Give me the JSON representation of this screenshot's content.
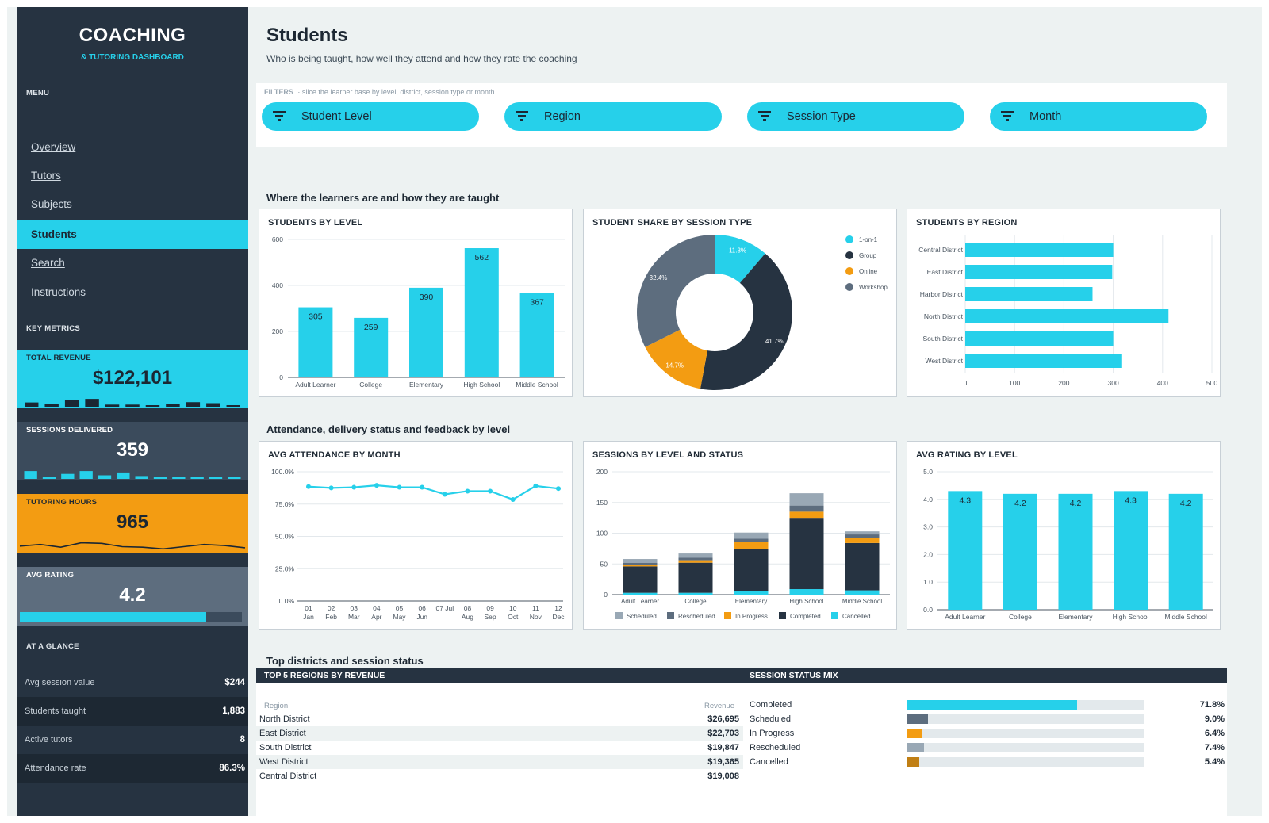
{
  "brand": {
    "title": "COACHING",
    "subtitle": "& TUTORING DASHBOARD"
  },
  "sidebar": {
    "menu_label": "MENU",
    "nav": [
      {
        "label": "Overview",
        "active": false
      },
      {
        "label": "Tutors",
        "active": false
      },
      {
        "label": "Subjects",
        "active": false
      },
      {
        "label": "Students",
        "active": true
      },
      {
        "label": "Search",
        "active": false
      },
      {
        "label": "Instructions",
        "active": false
      }
    ],
    "metrics_label": "KEY METRICS",
    "kpis": {
      "revenue": {
        "label": "TOTAL REVENUE",
        "value": "$122,101",
        "spark": [
          0.3,
          0.2,
          0.45,
          0.55,
          0.15,
          0.15,
          0.05,
          0.22,
          0.32,
          0.25,
          0.08
        ]
      },
      "sessions": {
        "label": "SESSIONS DELIVERED",
        "value": "359",
        "spark": [
          0.55,
          0.15,
          0.35,
          0.55,
          0.25,
          0.45,
          0.2,
          0.05,
          0.05,
          0.05,
          0.15,
          0.05
        ]
      },
      "hours": {
        "label": "TUTORING HOURS",
        "value": "965",
        "spark": [
          0.3,
          0.45,
          0.2,
          0.6,
          0.55,
          0.25,
          0.2,
          0.05,
          0.25,
          0.45,
          0.35,
          0.15
        ]
      },
      "rating": {
        "label": "AVG RATING",
        "value": "4.2",
        "progress": 0.84
      }
    },
    "glance_label": "AT A GLANCE",
    "glance": [
      {
        "label": "Avg session value",
        "value": "$244"
      },
      {
        "label": "Students taught",
        "value": "1,883"
      },
      {
        "label": "Active tutors",
        "value": "8"
      },
      {
        "label": "Attendance rate",
        "value": "86.3%"
      }
    ]
  },
  "header": {
    "title": "Students",
    "subtitle": "Who is being taught, how well they attend and how they rate the coaching"
  },
  "filters": {
    "caption_label": "FILTERS",
    "caption_text": "slice the learner base by level, district, session type or month",
    "items": [
      "Student Level",
      "Region",
      "Session Type",
      "Month"
    ]
  },
  "sections": {
    "s1": "Where the learners are and how they are taught",
    "s2": "Attendance, delivery status and feedback by level",
    "s3": "Top districts and session status"
  },
  "colors": {
    "accent": "#26d0ea",
    "navy": "#263341",
    "orange": "#f39c12",
    "slate": "#5d6d7e",
    "grey": "#99a8b5",
    "dark_orange": "#c07f14"
  },
  "chart_data": [
    {
      "id": "students_by_level",
      "type": "bar",
      "title": "STUDENTS BY LEVEL",
      "categories": [
        "Adult Learner",
        "College",
        "Elementary",
        "High School",
        "Middle School"
      ],
      "values": [
        305,
        259,
        390,
        562,
        367
      ],
      "yticks": [
        "0",
        "200",
        "400",
        "600"
      ],
      "ylim": [
        0,
        600
      ]
    },
    {
      "id": "share_by_session_type",
      "type": "pie",
      "title": "STUDENT SHARE BY SESSION TYPE",
      "labels": [
        "1-on-1",
        "Group",
        "Online",
        "Workshop"
      ],
      "values": [
        11.3,
        41.7,
        14.7,
        32.4
      ],
      "display": [
        "11.3%",
        "41.7%",
        "14.7%",
        "32.4%"
      ],
      "colors": [
        "#26d0ea",
        "#263341",
        "#f39c12",
        "#5d6d7e"
      ]
    },
    {
      "id": "students_by_region",
      "type": "bar",
      "orientation": "horizontal",
      "title": "STUDENTS BY REGION",
      "categories": [
        "Central District",
        "East District",
        "Harbor District",
        "North District",
        "South District",
        "West District"
      ],
      "values": [
        300,
        298,
        258,
        412,
        300,
        318
      ],
      "xticks": [
        "0",
        "100",
        "200",
        "300",
        "400",
        "500"
      ],
      "xlim": [
        0,
        500
      ]
    },
    {
      "id": "avg_attendance_by_month",
      "type": "line",
      "title": "AVG ATTENDANCE BY MONTH",
      "xticks": [
        [
          "01",
          "Jan"
        ],
        [
          "02",
          "Feb"
        ],
        [
          "03",
          "Mar"
        ],
        [
          "04",
          "Apr"
        ],
        [
          "05",
          "May"
        ],
        [
          "06",
          "Jun"
        ],
        [
          "07 Jul",
          ""
        ],
        [
          "08",
          "Aug"
        ],
        [
          "09",
          "Sep"
        ],
        [
          "10",
          "Oct"
        ],
        [
          "11",
          "Nov"
        ],
        [
          "12",
          "Dec"
        ]
      ],
      "values": [
        88.5,
        87.5,
        88,
        89.5,
        88,
        88,
        82.5,
        85,
        85,
        78.5,
        89,
        87
      ],
      "yticks": [
        "0.0%",
        "25.0%",
        "50.0%",
        "75.0%",
        "100.0%"
      ],
      "ylim": [
        0,
        100
      ]
    },
    {
      "id": "sessions_by_level_and_status",
      "type": "bar",
      "stacked": true,
      "title": "SESSIONS BY LEVEL AND STATUS",
      "categories": [
        "Adult Learner",
        "College",
        "Elementary",
        "High School",
        "Middle School"
      ],
      "series": [
        {
          "name": "Cancelled",
          "color": "#26d0ea",
          "values": [
            3,
            3,
            6,
            9,
            7
          ]
        },
        {
          "name": "Completed",
          "color": "#263341",
          "values": [
            43,
            49,
            68,
            116,
            77
          ]
        },
        {
          "name": "In Progress",
          "color": "#f39c12",
          "values": [
            3,
            4,
            12,
            10,
            8
          ]
        },
        {
          "name": "Rescheduled",
          "color": "#5d6d7e",
          "values": [
            3,
            4,
            5,
            10,
            6
          ]
        },
        {
          "name": "Scheduled",
          "color": "#99a8b5",
          "values": [
            6,
            7,
            10,
            20,
            5
          ]
        }
      ],
      "legend_order": [
        "Scheduled",
        "Rescheduled",
        "In Progress",
        "Completed",
        "Cancelled"
      ],
      "yticks": [
        "0",
        "50",
        "100",
        "150",
        "200"
      ],
      "ylim": [
        0,
        200
      ]
    },
    {
      "id": "avg_rating_by_level",
      "type": "bar",
      "title": "AVG RATING BY LEVEL",
      "categories": [
        "Adult Learner",
        "College",
        "Elementary",
        "High School",
        "Middle School"
      ],
      "values": [
        4.3,
        4.2,
        4.2,
        4.3,
        4.2
      ],
      "yticks": [
        "0.0",
        "1.0",
        "2.0",
        "3.0",
        "4.0",
        "5.0"
      ],
      "ylim": [
        0,
        5
      ]
    }
  ],
  "bottom": {
    "regions_title": "TOP 5 REGIONS BY REVENUE",
    "region_header": "Region",
    "revenue_header": "Revenue",
    "regions": [
      {
        "name": "North District",
        "value": "$26,695"
      },
      {
        "name": "East District",
        "value": "$22,703"
      },
      {
        "name": "South District",
        "value": "$19,847"
      },
      {
        "name": "West District",
        "value": "$19,365"
      },
      {
        "name": "Central District",
        "value": "$19,008"
      }
    ],
    "status_title": "SESSION STATUS MIX",
    "statuses": [
      {
        "name": "Completed",
        "pct": "71.8%",
        "share": 0.718,
        "color": "#26d0ea"
      },
      {
        "name": "Scheduled",
        "pct": "9.0%",
        "share": 0.09,
        "color": "#5d6d7e"
      },
      {
        "name": "In Progress",
        "pct": "6.4%",
        "share": 0.064,
        "color": "#f39c12"
      },
      {
        "name": "Rescheduled",
        "pct": "7.4%",
        "share": 0.074,
        "color": "#99a8b5"
      },
      {
        "name": "Cancelled",
        "pct": "5.4%",
        "share": 0.054,
        "color": "#c07f14"
      }
    ]
  }
}
